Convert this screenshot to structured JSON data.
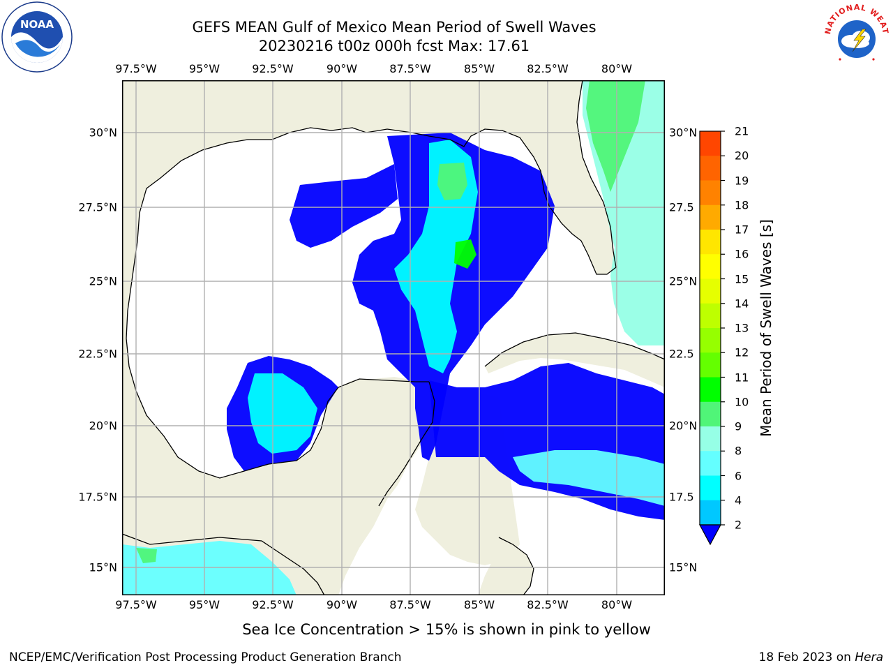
{
  "title": {
    "line1": "GEFS MEAN Gulf of Mexico Mean Period of Swell Waves",
    "line2": "20230216 t00z 000h fcst   Max: 17.61"
  },
  "axes": {
    "lon_labels": [
      "97.5°W",
      "95°W",
      "92.5°W",
      "90°W",
      "87.5°W",
      "85°W",
      "82.5°W",
      "80°W"
    ],
    "lat_labels_left": [
      "30°N",
      "27.5°N",
      "25°N",
      "22.5°N",
      "20°N",
      "17.5°N",
      "15°N"
    ],
    "lat_labels_right": [
      "30°N",
      "27.5",
      "25°N",
      "22.5",
      "20°N",
      "17.5",
      "15°N"
    ]
  },
  "colorbar": {
    "title": "Mean Period of Swell Waves [s]",
    "ticks": [
      "21",
      "20",
      "19",
      "18",
      "17",
      "16",
      "15",
      "14",
      "13",
      "12",
      "11",
      "10",
      "9",
      "8",
      "6",
      "4",
      "2"
    ],
    "colors": [
      "#ff0000",
      "#ff2800",
      "#ff4600",
      "#ff6400",
      "#ff8200",
      "#ffaa00",
      "#ffe600",
      "#ffff00",
      "#e6ff00",
      "#beff00",
      "#96ff00",
      "#64ff00",
      "#00ff00",
      "#50f578",
      "#96ffe6",
      "#64ffff",
      "#00ffff",
      "#00c8ff",
      "#0000ff"
    ]
  },
  "map_colors": {
    "land": "#efefde",
    "ocean": "#ffffff",
    "grid": "#b0b0b0",
    "coast": "#000000"
  },
  "notes": {
    "sea_ice": "Sea Ice Concentration > 15% is shown in pink to yellow"
  },
  "footer": {
    "left": "NCEP/EMC/Verification Post Processing Product Generation Branch",
    "right_date": "18 Feb 2023 on ",
    "right_host": "Hera"
  },
  "logos": {
    "noaa_text": "NOAA",
    "nws_text": "NATIONAL WEATHER SERVICE"
  }
}
